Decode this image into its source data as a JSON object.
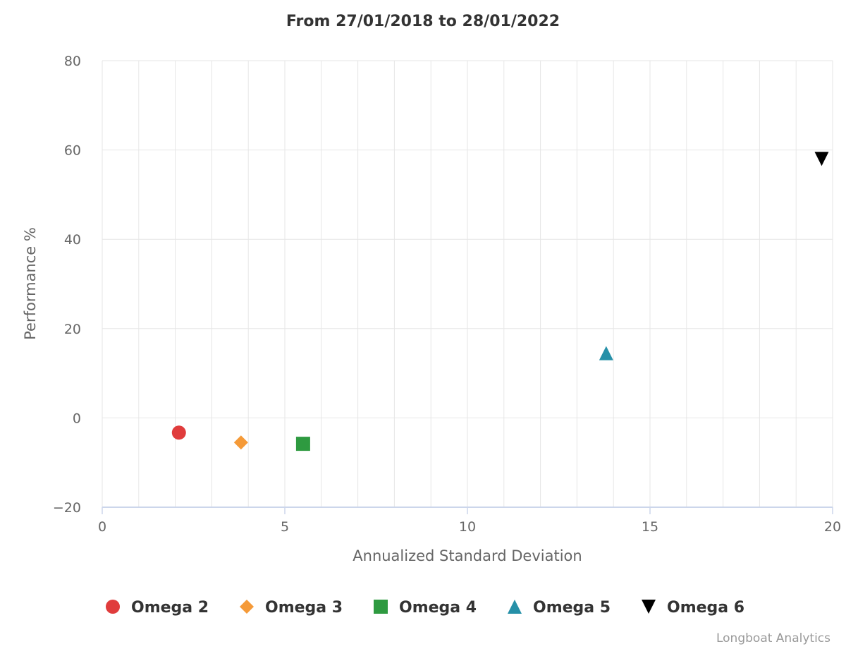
{
  "chart_data": {
    "type": "scatter",
    "title": "From 27/01/2018 to 28/01/2022",
    "xlabel": "Annualized Standard Deviation",
    "ylabel": "Performance %",
    "xlim": [
      0,
      20
    ],
    "ylim": [
      -20,
      80
    ],
    "xticks": [
      0,
      5,
      10,
      15,
      20
    ],
    "yticks": [
      -20,
      0,
      20,
      40,
      60,
      80
    ],
    "x_minor_step": 1,
    "grid": true,
    "legend_position": "bottom",
    "series": [
      {
        "name": "Omega 2",
        "color": "#e03c3c",
        "marker": "circle",
        "points": [
          {
            "x": 2.1,
            "y": -3.3
          }
        ]
      },
      {
        "name": "Omega 3",
        "color": "#f59a38",
        "marker": "diamond",
        "points": [
          {
            "x": 3.8,
            "y": -5.5
          }
        ]
      },
      {
        "name": "Omega 4",
        "color": "#2e9a40",
        "marker": "square",
        "points": [
          {
            "x": 5.5,
            "y": -5.8
          }
        ]
      },
      {
        "name": "Omega 5",
        "color": "#2690a8",
        "marker": "triangle",
        "points": [
          {
            "x": 13.8,
            "y": 14.5
          }
        ]
      },
      {
        "name": "Omega 6",
        "color": "#000000",
        "marker": "triangle-down",
        "points": [
          {
            "x": 19.7,
            "y": 58.0
          }
        ]
      }
    ]
  },
  "credits": "Longboat Analytics"
}
